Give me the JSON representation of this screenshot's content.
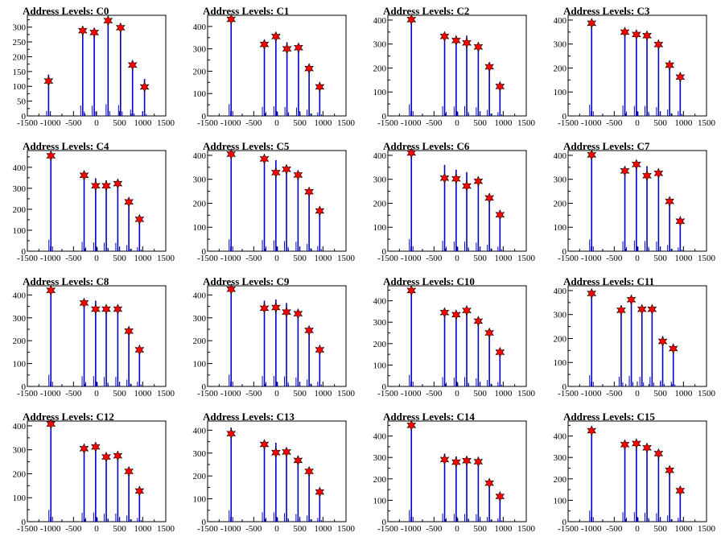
{
  "colors": {
    "histogram": "#0000cc",
    "marker": "#ff0000",
    "marker_edge": "#000000",
    "axis": "#000000"
  },
  "chart_data": [
    {
      "type": "bar",
      "title": "Address Levels: C0",
      "xlim": [
        -1500,
        1500
      ],
      "ylim": [
        0,
        340
      ],
      "yticks": [
        0,
        50,
        100,
        150,
        200,
        250,
        300
      ],
      "xticks": [
        -1500,
        -1000,
        -500,
        0,
        500,
        1000,
        1500
      ],
      "peaks": [
        {
          "x": -1040,
          "y": 118,
          "h": 140
        },
        {
          "x": -300,
          "y": 288,
          "h": 295
        },
        {
          "x": -50,
          "y": 282,
          "h": 290
        },
        {
          "x": 250,
          "y": 322,
          "h": 330
        },
        {
          "x": 520,
          "y": 298,
          "h": 305
        },
        {
          "x": 780,
          "y": 172,
          "h": 178
        },
        {
          "x": 1040,
          "y": 98,
          "h": 125
        }
      ]
    },
    {
      "type": "bar",
      "title": "Address Levels: C1",
      "xlim": [
        -1500,
        1500
      ],
      "ylim": [
        0,
        450
      ],
      "yticks": [
        0,
        100,
        200,
        300,
        400
      ],
      "xticks": [
        -1500,
        -1000,
        -500,
        0,
        500,
        1000,
        1500
      ],
      "peaks": [
        {
          "x": -990,
          "y": 432,
          "h": 440
        },
        {
          "x": -270,
          "y": 320,
          "h": 340
        },
        {
          "x": -20,
          "y": 355,
          "h": 360
        },
        {
          "x": 220,
          "y": 300,
          "h": 330
        },
        {
          "x": 470,
          "y": 305,
          "h": 312
        },
        {
          "x": 700,
          "y": 212,
          "h": 232
        },
        {
          "x": 930,
          "y": 130,
          "h": 135
        }
      ]
    },
    {
      "type": "bar",
      "title": "Address Levels: C2",
      "xlim": [
        -1500,
        1500
      ],
      "ylim": [
        0,
        420
      ],
      "yticks": [
        0,
        100,
        200,
        300,
        400
      ],
      "xticks": [
        -1500,
        -1000,
        -500,
        0,
        500,
        1000,
        1500
      ],
      "peaks": [
        {
          "x": -990,
          "y": 402,
          "h": 405
        },
        {
          "x": -270,
          "y": 332,
          "h": 340
        },
        {
          "x": -20,
          "y": 315,
          "h": 330
        },
        {
          "x": 210,
          "y": 305,
          "h": 335
        },
        {
          "x": 460,
          "y": 288,
          "h": 300
        },
        {
          "x": 700,
          "y": 205,
          "h": 210
        },
        {
          "x": 930,
          "y": 123,
          "h": 128
        }
      ]
    },
    {
      "type": "bar",
      "title": "Address Levels: C3",
      "xlim": [
        -1500,
        1500
      ],
      "ylim": [
        0,
        420
      ],
      "yticks": [
        0,
        100,
        200,
        300,
        400
      ],
      "xticks": [
        -1500,
        -1000,
        -500,
        0,
        500,
        1000,
        1500
      ],
      "peaks": [
        {
          "x": -990,
          "y": 387,
          "h": 392
        },
        {
          "x": -270,
          "y": 350,
          "h": 358
        },
        {
          "x": -20,
          "y": 340,
          "h": 350
        },
        {
          "x": 210,
          "y": 335,
          "h": 345
        },
        {
          "x": 460,
          "y": 298,
          "h": 305
        },
        {
          "x": 700,
          "y": 212,
          "h": 225
        },
        {
          "x": 930,
          "y": 162,
          "h": 168
        }
      ]
    },
    {
      "type": "bar",
      "title": "Address Levels: C4",
      "xlim": [
        -1500,
        1500
      ],
      "ylim": [
        0,
        480
      ],
      "yticks": [
        0,
        100,
        200,
        300,
        400
      ],
      "xticks": [
        -1500,
        -1000,
        -500,
        0,
        500,
        1000,
        1500
      ],
      "peaks": [
        {
          "x": -990,
          "y": 455,
          "h": 460
        },
        {
          "x": -270,
          "y": 362,
          "h": 370
        },
        {
          "x": -20,
          "y": 312,
          "h": 348
        },
        {
          "x": 210,
          "y": 312,
          "h": 338
        },
        {
          "x": 460,
          "y": 322,
          "h": 330
        },
        {
          "x": 700,
          "y": 235,
          "h": 240
        },
        {
          "x": 930,
          "y": 152,
          "h": 160
        }
      ]
    },
    {
      "type": "bar",
      "title": "Address Levels: C5",
      "xlim": [
        -1500,
        1500
      ],
      "ylim": [
        0,
        420
      ],
      "yticks": [
        0,
        100,
        200,
        300,
        400
      ],
      "xticks": [
        -1500,
        -1000,
        -500,
        0,
        500,
        1000,
        1500
      ],
      "peaks": [
        {
          "x": -990,
          "y": 405,
          "h": 410
        },
        {
          "x": -270,
          "y": 385,
          "h": 390
        },
        {
          "x": -20,
          "y": 328,
          "h": 380
        },
        {
          "x": 210,
          "y": 342,
          "h": 350
        },
        {
          "x": 460,
          "y": 318,
          "h": 325
        },
        {
          "x": 700,
          "y": 248,
          "h": 252
        },
        {
          "x": 930,
          "y": 168,
          "h": 172
        }
      ]
    },
    {
      "type": "bar",
      "title": "Address Levels: C6",
      "xlim": [
        -1500,
        1500
      ],
      "ylim": [
        0,
        420
      ],
      "yticks": [
        0,
        100,
        200,
        300,
        400
      ],
      "xticks": [
        -1500,
        -1000,
        -500,
        0,
        500,
        1000,
        1500
      ],
      "peaks": [
        {
          "x": -990,
          "y": 410,
          "h": 415
        },
        {
          "x": -270,
          "y": 305,
          "h": 360
        },
        {
          "x": -20,
          "y": 302,
          "h": 340
        },
        {
          "x": 210,
          "y": 272,
          "h": 330
        },
        {
          "x": 460,
          "y": 292,
          "h": 300
        },
        {
          "x": 700,
          "y": 222,
          "h": 230
        },
        {
          "x": 930,
          "y": 152,
          "h": 158
        }
      ]
    },
    {
      "type": "bar",
      "title": "Address Levels: C7",
      "xlim": [
        -1500,
        1500
      ],
      "ylim": [
        0,
        420
      ],
      "yticks": [
        0,
        100,
        200,
        300,
        400
      ],
      "xticks": [
        -1500,
        -1000,
        -500,
        0,
        500,
        1000,
        1500
      ],
      "peaks": [
        {
          "x": -990,
          "y": 402,
          "h": 408
        },
        {
          "x": -270,
          "y": 335,
          "h": 345
        },
        {
          "x": -20,
          "y": 362,
          "h": 368
        },
        {
          "x": 210,
          "y": 315,
          "h": 355
        },
        {
          "x": 460,
          "y": 325,
          "h": 330
        },
        {
          "x": 700,
          "y": 208,
          "h": 215
        },
        {
          "x": 930,
          "y": 125,
          "h": 130
        }
      ]
    },
    {
      "type": "bar",
      "title": "Address Levels: C8",
      "xlim": [
        -1500,
        1500
      ],
      "ylim": [
        0,
        440
      ],
      "yticks": [
        0,
        100,
        200,
        300,
        400
      ],
      "xticks": [
        -1500,
        -1000,
        -500,
        0,
        500,
        1000,
        1500
      ],
      "peaks": [
        {
          "x": -990,
          "y": 420,
          "h": 425
        },
        {
          "x": -270,
          "y": 365,
          "h": 372
        },
        {
          "x": -20,
          "y": 338,
          "h": 375
        },
        {
          "x": 210,
          "y": 338,
          "h": 345
        },
        {
          "x": 460,
          "y": 338,
          "h": 342
        },
        {
          "x": 700,
          "y": 242,
          "h": 248
        },
        {
          "x": 930,
          "y": 160,
          "h": 168
        }
      ]
    },
    {
      "type": "bar",
      "title": "Address Levels: C9",
      "xlim": [
        -1500,
        1500
      ],
      "ylim": [
        0,
        440
      ],
      "yticks": [
        0,
        100,
        200,
        300,
        400
      ],
      "xticks": [
        -1500,
        -1000,
        -500,
        0,
        500,
        1000,
        1500
      ],
      "peaks": [
        {
          "x": -990,
          "y": 425,
          "h": 430
        },
        {
          "x": -270,
          "y": 342,
          "h": 375
        },
        {
          "x": -20,
          "y": 345,
          "h": 380
        },
        {
          "x": 210,
          "y": 325,
          "h": 365
        },
        {
          "x": 460,
          "y": 318,
          "h": 325
        },
        {
          "x": 700,
          "y": 245,
          "h": 252
        },
        {
          "x": 930,
          "y": 160,
          "h": 168
        }
      ]
    },
    {
      "type": "bar",
      "title": "Address Levels: C10",
      "xlim": [
        -1500,
        1500
      ],
      "ylim": [
        0,
        470
      ],
      "yticks": [
        0,
        100,
        200,
        300,
        400
      ],
      "xticks": [
        -1500,
        -1000,
        -500,
        0,
        500,
        1000,
        1500
      ],
      "peaks": [
        {
          "x": -990,
          "y": 448,
          "h": 452
        },
        {
          "x": -270,
          "y": 345,
          "h": 362
        },
        {
          "x": -20,
          "y": 335,
          "h": 342
        },
        {
          "x": 210,
          "y": 355,
          "h": 362
        },
        {
          "x": 460,
          "y": 305,
          "h": 312
        },
        {
          "x": 700,
          "y": 250,
          "h": 255
        },
        {
          "x": 930,
          "y": 160,
          "h": 165
        }
      ]
    },
    {
      "type": "bar",
      "title": "Address Levels: C11",
      "xlim": [
        -1500,
        1500
      ],
      "ylim": [
        0,
        420
      ],
      "yticks": [
        0,
        100,
        200,
        300,
        400
      ],
      "xticks": [
        -1500,
        -1000,
        -500,
        0,
        500,
        1000,
        1500
      ],
      "peaks": [
        {
          "x": -990,
          "y": 388,
          "h": 392
        },
        {
          "x": -350,
          "y": 318,
          "h": 338
        },
        {
          "x": -130,
          "y": 362,
          "h": 368
        },
        {
          "x": 100,
          "y": 322,
          "h": 330
        },
        {
          "x": 320,
          "y": 322,
          "h": 330
        },
        {
          "x": 550,
          "y": 188,
          "h": 210
        },
        {
          "x": 780,
          "y": 158,
          "h": 165
        }
      ]
    },
    {
      "type": "bar",
      "title": "Address Levels: C12",
      "xlim": [
        -1500,
        1500
      ],
      "ylim": [
        0,
        420
      ],
      "yticks": [
        0,
        100,
        200,
        300,
        400
      ],
      "xticks": [
        -1500,
        -1000,
        -500,
        0,
        500,
        1000,
        1500
      ],
      "peaks": [
        {
          "x": -990,
          "y": 408,
          "h": 412
        },
        {
          "x": -270,
          "y": 305,
          "h": 312
        },
        {
          "x": -20,
          "y": 312,
          "h": 318
        },
        {
          "x": 210,
          "y": 270,
          "h": 278
        },
        {
          "x": 460,
          "y": 275,
          "h": 282
        },
        {
          "x": 700,
          "y": 210,
          "h": 215
        },
        {
          "x": 930,
          "y": 128,
          "h": 132
        }
      ]
    },
    {
      "type": "bar",
      "title": "Address Levels: C13",
      "xlim": [
        -1500,
        1500
      ],
      "ylim": [
        0,
        440
      ],
      "yticks": [
        0,
        100,
        200,
        300,
        400
      ],
      "xticks": [
        -1500,
        -1000,
        -500,
        0,
        500,
        1000,
        1500
      ],
      "peaks": [
        {
          "x": -990,
          "y": 385,
          "h": 412
        },
        {
          "x": -270,
          "y": 338,
          "h": 342
        },
        {
          "x": -20,
          "y": 302,
          "h": 345
        },
        {
          "x": 210,
          "y": 305,
          "h": 310
        },
        {
          "x": 460,
          "y": 268,
          "h": 275
        },
        {
          "x": 700,
          "y": 220,
          "h": 225
        },
        {
          "x": 930,
          "y": 130,
          "h": 135
        }
      ]
    },
    {
      "type": "bar",
      "title": "Address Levels: C14",
      "xlim": [
        -1500,
        1500
      ],
      "ylim": [
        0,
        470
      ],
      "yticks": [
        0,
        100,
        200,
        300,
        400
      ],
      "xticks": [
        -1500,
        -1000,
        -500,
        0,
        500,
        1000,
        1500
      ],
      "peaks": [
        {
          "x": -990,
          "y": 450,
          "h": 455
        },
        {
          "x": -270,
          "y": 290,
          "h": 318
        },
        {
          "x": -20,
          "y": 278,
          "h": 305
        },
        {
          "x": 210,
          "y": 285,
          "h": 292
        },
        {
          "x": 460,
          "y": 280,
          "h": 288
        },
        {
          "x": 700,
          "y": 180,
          "h": 185
        },
        {
          "x": 930,
          "y": 118,
          "h": 122
        }
      ]
    },
    {
      "type": "bar",
      "title": "Address Levels: C15",
      "xlim": [
        -1500,
        1500
      ],
      "ylim": [
        0,
        470
      ],
      "yticks": [
        0,
        100,
        200,
        300,
        400
      ],
      "xticks": [
        -1500,
        -1000,
        -500,
        0,
        500,
        1000,
        1500
      ],
      "peaks": [
        {
          "x": -990,
          "y": 425,
          "h": 430
        },
        {
          "x": -270,
          "y": 360,
          "h": 368
        },
        {
          "x": -20,
          "y": 365,
          "h": 372
        },
        {
          "x": 210,
          "y": 345,
          "h": 350
        },
        {
          "x": 460,
          "y": 318,
          "h": 325
        },
        {
          "x": 700,
          "y": 240,
          "h": 245
        },
        {
          "x": 930,
          "y": 145,
          "h": 150
        }
      ]
    }
  ]
}
